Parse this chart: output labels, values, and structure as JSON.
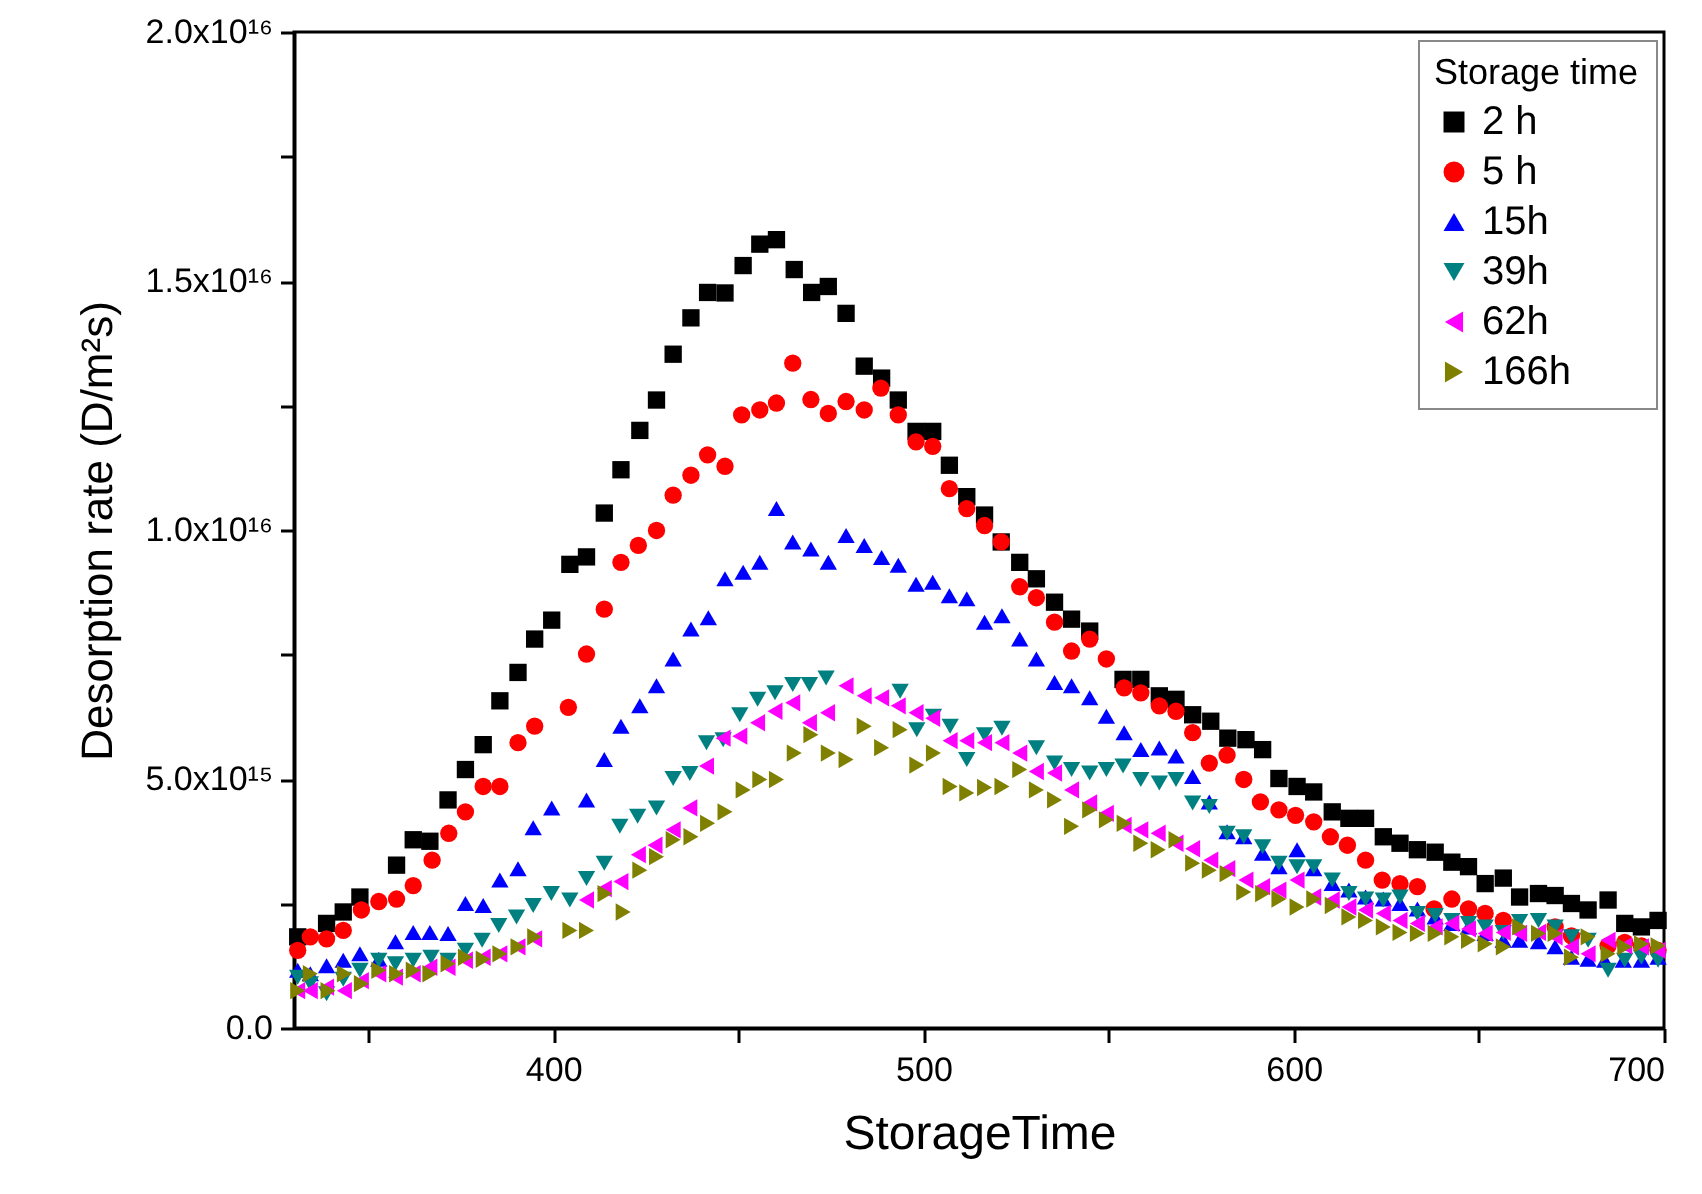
{
  "chart_data": {
    "type": "scatter",
    "xlabel": "StorageTime",
    "ylabel": "Desorption rate (D/m²s)",
    "legend_title": "Storage time",
    "legend": "top right",
    "grid": false,
    "xlim": [
      330,
      700
    ],
    "xticks": [
      {
        "value": 350,
        "label": null
      },
      400,
      {
        "value": 450,
        "label": null
      },
      500,
      {
        "value": 550,
        "label": null
      },
      600,
      {
        "value": 650,
        "label": null
      },
      700
    ],
    "ylim": [
      0,
      2e+16
    ],
    "yticks": [
      {
        "value": 0,
        "label": "0.0"
      },
      {
        "value": 2500000000000000.0,
        "label": null
      },
      {
        "value": 5000000000000000.0,
        "label": "5.0x10¹⁵"
      },
      {
        "value": 7500000000000000.0,
        "label": null
      },
      {
        "value": 1e+16,
        "label": "1.0x10¹⁶"
      },
      {
        "value": 1.25e+16,
        "label": null
      },
      {
        "value": 1.5e+16,
        "label": "1.5x10¹⁶"
      },
      {
        "value": 1.75e+16,
        "label": null
      },
      {
        "value": 2e+16,
        "label": "2.0x10¹⁶"
      }
    ],
    "series": [
      {
        "name": "2 h",
        "color": "#000000",
        "marker": "square",
        "x": [
          331,
          338.8,
          343.3,
          347.8,
          357.7,
          362.2,
          366.7,
          371.6,
          376.3,
          381.1,
          385.6,
          390.5,
          395,
          399.6,
          404.5,
          409,
          413.8,
          418.3,
          423.4,
          427.9,
          432.4,
          437.2,
          441.7,
          446.4,
          451.3,
          455.8,
          460.3,
          465.1,
          469.8,
          474.3,
          479.1,
          484,
          488.7,
          493.2,
          498,
          502.5,
          507,
          511.7,
          516.5,
          521,
          526,
          530.5,
          535.4,
          540,
          544.9,
          553.9,
          558.7,
          563.7,
          568.2,
          572.7,
          577.6,
          582.2,
          587.1,
          591.6,
          596,
          600.9,
          605.4,
          610.4,
          614.9,
          619.4,
          624.2,
          628.7,
          633.4,
          638.2,
          642.7,
          647.2,
          651.7,
          656.6,
          661,
          666.1,
          670.6,
          675,
          679.5,
          684.9,
          689.4,
          693.9,
          698.4
        ],
        "values": [
          1830000000000000.0,
          2100000000000000.0,
          2330000000000000.0,
          2630000000000000.0,
          3270000000000000.0,
          3780000000000000.0,
          3750000000000000.0,
          4580000000000000.0,
          5190000000000000.0,
          5690000000000000.0,
          6570000000000000.0,
          7140000000000000.0,
          7810000000000000.0,
          8190000000000000.0,
          9310000000000000.0,
          9460000000000000.0,
          1.034e+16,
          1.121e+16,
          1.2e+16,
          1.261e+16,
          1.353e+16,
          1.426e+16,
          1.477e+16,
          1.476e+16,
          1.531e+16,
          1.574e+16,
          1.583e+16,
          1.523e+16,
          1.477e+16,
          1.489e+16,
          1.435e+16,
          1.329e+16,
          1.305e+16,
          1.261e+16,
          1.198e+16,
          1.198e+16,
          1.13e+16,
          1.067e+16,
          1.03e+16,
          9760000000000000.0,
          9350000000000000.0,
          9020000000000000.0,
          8550000000000000.0,
          8210000000000000.0,
          7970000000000000.0,
          7000000000000000.0,
          7000000000000000.0,
          6670000000000000.0,
          6600000000000000.0,
          6290000000000000.0,
          6160000000000000.0,
          5820000000000000.0,
          5790000000000000.0,
          5590000000000000.0,
          5010000000000000.0,
          4850000000000000.0,
          4740000000000000.0,
          4340000000000000.0,
          4210000000000000.0,
          4210000000000000.0,
          3840000000000000.0,
          3710000000000000.0,
          3580000000000000.0,
          3530000000000000.0,
          3330000000000000.0,
          3240000000000000.0,
          2900000000000000.0,
          3010000000000000.0,
          2630000000000000.0,
          2700000000000000.0,
          2660000000000000.0,
          2500000000000000.0,
          2370000000000000.0,
          2570000000000000.0,
          2100000000000000.0,
          2030000000000000.0,
          2160000000000000.0
        ]
      },
      {
        "name": "5 h",
        "color": "#ff0000",
        "marker": "circle",
        "x": [
          331,
          334.4,
          338.8,
          343.3,
          348.2,
          352.9,
          357.7,
          362.2,
          367.3,
          371.8,
          376.3,
          381.1,
          385.6,
          390.5,
          395,
          404.1,
          409,
          413.8,
          418.3,
          423,
          427.9,
          432.4,
          437.2,
          441.7,
          446.4,
          450.9,
          455.8,
          460.3,
          464.7,
          469.6,
          474.3,
          479.1,
          484,
          488.5,
          493.2,
          498,
          502.5,
          507,
          511.7,
          516.5,
          521,
          526,
          530.5,
          535.4,
          540,
          544.9,
          549.4,
          554.2,
          558.7,
          563.7,
          568.2,
          572.7,
          577.2,
          582,
          586.5,
          591,
          596,
          600.5,
          605.4,
          609.9,
          614.5,
          619.4,
          623.9,
          628.7,
          633.4,
          637.9,
          642.7,
          647.2,
          651.7,
          656.6,
          670.6,
          675,
          684.9,
          689.4,
          693.9,
          698.4
        ],
        "values": [
          1560000000000000.0,
          1830000000000000.0,
          1790000000000000.0,
          1960000000000000.0,
          2370000000000000.0,
          2540000000000000.0,
          2590000000000000.0,
          2860000000000000.0,
          3370000000000000.0,
          3910000000000000.0,
          4340000000000000.0,
          4850000000000000.0,
          4850000000000000.0,
          5730000000000000.0,
          6060000000000000.0,
          6440000000000000.0,
          7510000000000000.0,
          8410000000000000.0,
          9350000000000000.0,
          9690000000000000.0,
          9990000000000000.0,
          1.07e+16,
          1.11e+16,
          1.151e+16,
          1.128e+16,
          1.231e+16,
          1.241e+16,
          1.255e+16,
          1.335e+16,
          1.262e+16,
          1.234e+16,
          1.258e+16,
          1.241e+16,
          1.285e+16,
          1.231e+16,
          1.177e+16,
          1.168e+16,
          1.083e+16,
          1.043e+16,
          1.009e+16,
          9760000000000000.0,
          8860000000000000.0,
          8640000000000000.0,
          8150000000000000.0,
          7570000000000000.0,
          7810000000000000.0,
          7410000000000000.0,
          6830000000000000.0,
          6730000000000000.0,
          6470000000000000.0,
          6360000000000000.0,
          5930000000000000.0,
          5320000000000000.0,
          5480000000000000.0,
          4990000000000000.0,
          4540000000000000.0,
          4380000000000000.0,
          4270000000000000.0,
          4140000000000000.0,
          3840000000000000.0,
          3670000000000000.0,
          3370000000000000.0,
          2970000000000000.0,
          2900000000000000.0,
          2840000000000000.0,
          2390000000000000.0,
          2590000000000000.0,
          2390000000000000.0,
          2300000000000000.0,
          2160000000000000.0,
          2030000000000000.0,
          1850000000000000.0,
          1650000000000000.0,
          1720000000000000.0,
          1650000000000000.0,
          1560000000000000.0
        ]
      },
      {
        "name": "15h",
        "color": "#0000ff",
        "marker": "triangle",
        "x": [
          331,
          334.4,
          338.8,
          343.3,
          347.8,
          352.9,
          357.4,
          362.2,
          366.7,
          371.6,
          376.3,
          381.1,
          385.6,
          390.5,
          394.6,
          399.6,
          409,
          413.8,
          418.3,
          423.4,
          427.9,
          432.4,
          437.2,
          441.9,
          446.4,
          451.3,
          455.8,
          460.3,
          464.7,
          469.6,
          474.3,
          479.1,
          484,
          488.7,
          493.2,
          498,
          502.5,
          507,
          511.7,
          516.5,
          521.2,
          526,
          530.5,
          535.4,
          540,
          544.9,
          549.4,
          554.2,
          558.7,
          563.7,
          568.2,
          572.7,
          577.2,
          582,
          586.5,
          591.6,
          596,
          600.9,
          605.4,
          610.4,
          614.9,
          619.4,
          624.2,
          628.7,
          633.4,
          638.2,
          642.7,
          647.2,
          651.7,
          656.6,
          661,
          666.1,
          670.6,
          675,
          679.5,
          684,
          689,
          693.9,
          698.4
        ],
        "values": [
          1160000000000000.0,
          1090000000000000.0,
          1250000000000000.0,
          1360000000000000.0,
          1490000000000000.0,
          1380000000000000.0,
          1730000000000000.0,
          1920000000000000.0,
          1920000000000000.0,
          1900000000000000.0,
          2500000000000000.0,
          2460000000000000.0,
          2970000000000000.0,
          3200000000000000.0,
          4020000000000000.0,
          4420000000000000.0,
          4580000000000000.0,
          5390000000000000.0,
          6060000000000000.0,
          6470000000000000.0,
          6870000000000000.0,
          7410000000000000.0,
          8010000000000000.0,
          8240000000000000.0,
          9020000000000000.0,
          9150000000000000.0,
          9350000000000000.0,
          1.043e+16,
          9760000000000000.0,
          9620000000000000.0,
          9350000000000000.0,
          9890000000000000.0,
          9690000000000000.0,
          9450000000000000.0,
          9290000000000000.0,
          8910000000000000.0,
          8950000000000000.0,
          8680000000000000.0,
          8620000000000000.0,
          8150000000000000.0,
          8280000000000000.0,
          7810000000000000.0,
          7410000000000000.0,
          6940000000000000.0,
          6870000000000000.0,
          6630000000000000.0,
          6260000000000000.0,
          5930000000000000.0,
          5590000000000000.0,
          5620000000000000.0,
          5460000000000000.0,
          5050000000000000.0,
          4540000000000000.0,
          3940000000000000.0,
          3840000000000000.0,
          3510000000000000.0,
          3240000000000000.0,
          3580000000000000.0,
          3200000000000000.0,
          2900000000000000.0,
          2770000000000000.0,
          2630000000000000.0,
          2590000000000000.0,
          2500000000000000.0,
          2390000000000000.0,
          2230000000000000.0,
          2100000000000000.0,
          2030000000000000.0,
          1900000000000000.0,
          1760000000000000.0,
          1760000000000000.0,
          1730000000000000.0,
          1630000000000000.0,
          1420000000000000.0,
          1380000000000000.0,
          1360000000000000.0,
          1360000000000000.0,
          1360000000000000.0,
          1420000000000000.0
        ]
      },
      {
        "name": "39h",
        "color": "#008080",
        "marker": "triangle",
        "x": [
          331,
          334.4,
          338.8,
          343.3,
          347.8,
          352.9,
          357.4,
          362.2,
          367,
          371.6,
          376.3,
          380.8,
          385.3,
          390.1,
          394.6,
          399.5,
          404.5,
          409,
          413.8,
          418,
          422.8,
          427.9,
          432.4,
          436.9,
          441.4,
          445.9,
          450.4,
          455.2,
          459.9,
          464.7,
          469.2,
          473.7,
          493.7,
          498.2,
          502.7,
          507.2,
          511.7,
          516.5,
          521.2,
          530.5,
          535.4,
          540,
          544.9,
          549.4,
          553.9,
          558.7,
          563.7,
          568.2,
          572.7,
          577.2,
          582,
          586.5,
          591.6,
          596,
          600.9,
          605.4,
          610.4,
          614.9,
          619.4,
          624.2,
          628.7,
          633.4,
          638.2,
          642.7,
          647.2,
          651.7,
          656.6,
          661,
          666.1,
          670.6,
          675,
          679.5,
          684.9,
          689.4,
          693.9,
          698.4
        ],
        "values": [
          1020000000000000.0,
          890000000000000.0,
          690000000000000.0,
          980000000000000.0,
          1160000000000000.0,
          1360000000000000.0,
          1290000000000000.0,
          1360000000000000.0,
          1420000000000000.0,
          1360000000000000.0,
          1560000000000000.0,
          1760000000000000.0,
          2060000000000000.0,
          2230000000000000.0,
          2460000000000000.0,
          2700000000000000.0,
          2570000000000000.0,
          3000000000000000.0,
          3310000000000000.0,
          4050000000000000.0,
          4250000000000000.0,
          4420000000000000.0,
          5010000000000000.0,
          5110000000000000.0,
          5730000000000000.0,
          5790000000000000.0,
          6290000000000000.0,
          6600000000000000.0,
          6730000000000000.0,
          6900000000000000.0,
          6900000000000000.0,
          7030000000000000.0,
          6760000000000000.0,
          5990000000000000.0,
          6260000000000000.0,
          6060000000000000.0,
          5390000000000000.0,
          5890000000000000.0,
          6020000000000000.0,
          5630000000000000.0,
          5320000000000000.0,
          5190000000000000.0,
          5120000000000000.0,
          5190000000000000.0,
          5260000000000000.0,
          4990000000000000.0,
          4920000000000000.0,
          4990000000000000.0,
          4520000000000000.0,
          4450000000000000.0,
          3910000000000000.0,
          3840000000000000.0,
          3640000000000000.0,
          3310000000000000.0,
          3240000000000000.0,
          3240000000000000.0,
          2970000000000000.0,
          2700000000000000.0,
          2590000000000000.0,
          2570000000000000.0,
          2630000000000000.0,
          2300000000000000.0,
          2260000000000000.0,
          2160000000000000.0,
          2100000000000000.0,
          2030000000000000.0,
          1920000000000000.0,
          2140000000000000.0,
          2160000000000000.0,
          2030000000000000.0,
          1830000000000000.0,
          1760000000000000.0,
          1160000000000000.0,
          1360000000000000.0,
          1420000000000000.0,
          1360000000000000.0
        ]
      },
      {
        "name": "62h",
        "color": "#ff00ff",
        "marker": "triangle",
        "x": [
          331,
          334.4,
          338.8,
          343.6,
          348.2,
          352.9,
          357.4,
          362.2,
          366.7,
          371.6,
          376.3,
          381.1,
          385.6,
          390.5,
          395,
          409,
          413.8,
          418.3,
          423,
          427.5,
          432.4,
          436.9,
          441.4,
          445.9,
          450.4,
          455.2,
          459.9,
          464.7,
          469.2,
          474.1,
          479.1,
          484,
          488.7,
          493.2,
          498,
          502.5,
          507.2,
          511.7,
          516.5,
          521.2,
          526,
          530.5,
          535.4,
          540,
          544.9,
          549.4,
          554.2,
          558.7,
          563.4,
          568.2,
          572.7,
          577.6,
          582.2,
          587.1,
          591.6,
          596,
          600.9,
          605.4,
          610.4,
          614.9,
          619.4,
          624.2,
          628.7,
          633.4,
          638.2,
          642.7,
          647.2,
          651.7,
          656.6,
          661,
          666.1,
          670.6,
          675,
          679.5,
          684.9,
          689.4,
          693.9,
          698.4
        ],
        "values": [
          750000000000000.0,
          750000000000000.0,
          820000000000000.0,
          750000000000000.0,
          950000000000000.0,
          1090000000000000.0,
          1020000000000000.0,
          1090000000000000.0,
          1220000000000000.0,
          1220000000000000.0,
          1360000000000000.0,
          1420000000000000.0,
          1490000000000000.0,
          1630000000000000.0,
          1790000000000000.0,
          2570000000000000.0,
          2800000000000000.0,
          2940000000000000.0,
          3480000000000000.0,
          3670000000000000.0,
          3980000000000000.0,
          4420000000000000.0,
          5260000000000000.0,
          5820000000000000.0,
          5860000000000000.0,
          6130000000000000.0,
          6360000000000000.0,
          6530000000000000.0,
          6130000000000000.0,
          6330000000000000.0,
          6870000000000000.0,
          6670000000000000.0,
          6630000000000000.0,
          6470000000000000.0,
          6330000000000000.0,
          6220000000000000.0,
          5770000000000000.0,
          5770000000000000.0,
          5730000000000000.0,
          5730000000000000.0,
          5520000000000000.0,
          5150000000000000.0,
          5120000000000000.0,
          4780000000000000.0,
          4520000000000000.0,
          4310000000000000.0,
          4070000000000000.0,
          3980000000000000.0,
          3910000000000000.0,
          3710000000000000.0,
          3600000000000000.0,
          3370000000000000.0,
          3200000000000000.0,
          2970000000000000.0,
          2840000000000000.0,
          2770000000000000.0,
          2970000000000000.0,
          2630000000000000.0,
          2570000000000000.0,
          2430000000000000.0,
          2370000000000000.0,
          2300000000000000.0,
          2160000000000000.0,
          2100000000000000.0,
          2030000000000000.0,
          2100000000000000.0,
          1990000000000000.0,
          1900000000000000.0,
          1920000000000000.0,
          1900000000000000.0,
          1920000000000000.0,
          1830000000000000.0,
          1630000000000000.0,
          1490000000000000.0,
          1760000000000000.0,
          1650000000000000.0,
          1630000000000000.0,
          1560000000000000.0
        ]
      },
      {
        "name": "166h",
        "color": "#808000",
        "marker": "triangle",
        "x": [
          331,
          334.4,
          339.2,
          343.6,
          348.2,
          352.9,
          357.7,
          362.2,
          366.7,
          371.6,
          376.3,
          381.1,
          385.6,
          390.5,
          395,
          404.5,
          409,
          414,
          418.9,
          423.4,
          427.9,
          432.4,
          437.2,
          441.7,
          446.4,
          451.3,
          455.8,
          460.3,
          465.1,
          469.6,
          474.3,
          479.1,
          484,
          488.7,
          493.7,
          498.2,
          502.7,
          507.2,
          511.7,
          516.5,
          521.2,
          526,
          530.5,
          535.4,
          540,
          544.9,
          549.4,
          554.2,
          558.7,
          563.4,
          568.2,
          572.7,
          577.2,
          582,
          586.5,
          591.6,
          596,
          600.9,
          605.4,
          610.4,
          614.9,
          619.4,
          624.2,
          628.7,
          633.4,
          638.2,
          642.7,
          647.2,
          651.7,
          656.6,
          661,
          666.1,
          670.6,
          675,
          679.5,
          684.9,
          689.4,
          693.9,
          698.4
        ],
        "values": [
          750000000000000.0,
          1090000000000000.0,
          750000000000000.0,
          1090000000000000.0,
          890000000000000.0,
          1160000000000000.0,
          1090000000000000.0,
          1160000000000000.0,
          1090000000000000.0,
          1290000000000000.0,
          1420000000000000.0,
          1380000000000000.0,
          1490000000000000.0,
          1630000000000000.0,
          1830000000000000.0,
          1960000000000000.0,
          1960000000000000.0,
          2700000000000000.0,
          2330000000000000.0,
          3170000000000000.0,
          3440000000000000.0,
          3780000000000000.0,
          3840000000000000.0,
          4110000000000000.0,
          4340000000000000.0,
          4780000000000000.0,
          4990000000000000.0,
          4990000000000000.0,
          5520000000000000.0,
          5890000000000000.0,
          5520000000000000.0,
          5390000000000000.0,
          6060000000000000.0,
          5630000000000000.0,
          5990000000000000.0,
          5280000000000000.0,
          5520000000000000.0,
          4850000000000000.0,
          4720000000000000.0,
          4830000000000000.0,
          4850000000000000.0,
          5190000000000000.0,
          4780000000000000.0,
          4580000000000000.0,
          4050000000000000.0,
          4380000000000000.0,
          4180000000000000.0,
          4110000000000000.0,
          3710000000000000.0,
          3580000000000000.0,
          3780000000000000.0,
          3310000000000000.0,
          3170000000000000.0,
          3100000000000000.0,
          2730000000000000.0,
          2700000000000000.0,
          2590000000000000.0,
          2430000000000000.0,
          2590000000000000.0,
          2460000000000000.0,
          2230000000000000.0,
          2160000000000000.0,
          2030000000000000.0,
          1920000000000000.0,
          1900000000000000.0,
          1900000000000000.0,
          1830000000000000.0,
          1760000000000000.0,
          1690000000000000.0,
          1630000000000000.0,
          2030000000000000.0,
          1900000000000000.0,
          1900000000000000.0,
          1420000000000000.0,
          1830000000000000.0,
          1490000000000000.0,
          1630000000000000.0,
          1690000000000000.0,
          1650000000000000.0
        ]
      }
    ]
  }
}
